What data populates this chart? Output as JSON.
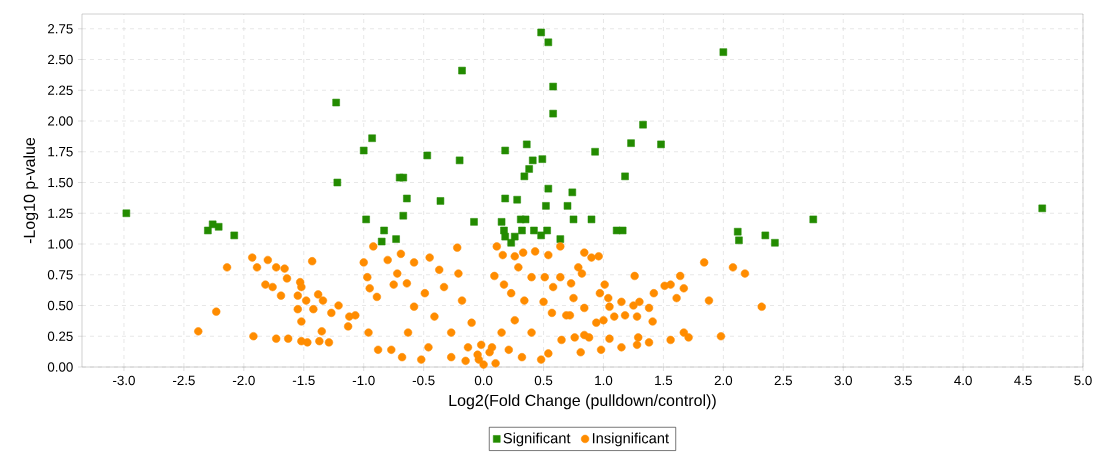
{
  "chart_data": {
    "type": "scatter",
    "xlabel": "Log2(Fold Change (pulldown/control))",
    "ylabel": "-Log10 p-value",
    "xlim": [
      -3.35,
      5.0
    ],
    "ylim": [
      0,
      2.87
    ],
    "xticks": [
      {
        "value": -3.0,
        "label": "-3.0"
      },
      {
        "value": -2.5,
        "label": "-2.5"
      },
      {
        "value": -2.0,
        "label": "-2.0"
      },
      {
        "value": -1.5,
        "label": "-1.5"
      },
      {
        "value": -1.0,
        "label": "-1.0"
      },
      {
        "value": -0.5,
        "label": "-0.5"
      },
      {
        "value": 0.0,
        "label": "0.0"
      },
      {
        "value": 0.5,
        "label": "0.5"
      },
      {
        "value": 1.0,
        "label": "1.0"
      },
      {
        "value": 1.5,
        "label": "1.5"
      },
      {
        "value": 2.0,
        "label": "2.0"
      },
      {
        "value": 2.5,
        "label": "2.5"
      },
      {
        "value": 3.0,
        "label": "3.0"
      },
      {
        "value": 3.5,
        "label": "3.5"
      },
      {
        "value": 4.0,
        "label": "4.0"
      },
      {
        "value": 4.5,
        "label": "4.5"
      },
      {
        "value": 5.0,
        "label": "5.0"
      }
    ],
    "yticks": [
      {
        "value": 0.0,
        "label": "0.00"
      },
      {
        "value": 0.25,
        "label": "0.25"
      },
      {
        "value": 0.5,
        "label": "0.50"
      },
      {
        "value": 0.75,
        "label": "0.75"
      },
      {
        "value": 1.0,
        "label": "1.00"
      },
      {
        "value": 1.25,
        "label": "1.25"
      },
      {
        "value": 1.5,
        "label": "1.50"
      },
      {
        "value": 1.75,
        "label": "1.75"
      },
      {
        "value": 2.0,
        "label": "2.00"
      },
      {
        "value": 2.25,
        "label": "2.25"
      },
      {
        "value": 2.5,
        "label": "2.50"
      },
      {
        "value": 2.75,
        "label": "2.75"
      }
    ],
    "grid": true,
    "legend": "bottom",
    "series": [
      {
        "name": "Significant",
        "color": "#238b00",
        "marker": "square",
        "x": [
          -2.98,
          -2.3,
          -2.26,
          -2.21,
          -2.08,
          -1.23,
          -1.22,
          -0.93,
          -1.0,
          -0.47,
          -0.18,
          -0.2,
          -0.7,
          -0.67,
          -0.64,
          -0.36,
          -0.98,
          -0.67,
          -0.08,
          -0.83,
          -0.85,
          -0.73,
          0.48,
          0.54,
          2.0,
          0.58,
          0.58,
          1.33,
          1.23,
          1.48,
          0.18,
          0.36,
          0.93,
          0.49,
          0.41,
          0.38,
          0.34,
          1.18,
          0.54,
          0.74,
          0.18,
          0.28,
          0.52,
          0.7,
          0.15,
          0.31,
          0.35,
          0.75,
          0.9,
          2.75,
          0.17,
          0.32,
          0.42,
          0.53,
          0.48,
          0.23,
          0.64,
          1.11,
          1.16,
          2.12,
          2.13,
          2.35,
          2.43,
          0.18,
          0.26,
          4.66
        ],
        "values": [
          1.25,
          1.11,
          1.16,
          1.14,
          1.07,
          2.15,
          1.5,
          1.86,
          1.76,
          1.72,
          2.41,
          1.68,
          1.54,
          1.54,
          1.37,
          1.35,
          1.2,
          1.23,
          1.18,
          1.11,
          1.02,
          1.04,
          2.72,
          2.64,
          2.56,
          2.28,
          2.06,
          1.97,
          1.82,
          1.81,
          1.76,
          1.81,
          1.75,
          1.69,
          1.68,
          1.61,
          1.55,
          1.55,
          1.45,
          1.42,
          1.37,
          1.36,
          1.31,
          1.31,
          1.18,
          1.2,
          1.2,
          1.2,
          1.2,
          1.2,
          1.11,
          1.11,
          1.11,
          1.11,
          1.07,
          1.01,
          1.04,
          1.11,
          1.11,
          1.1,
          1.03,
          1.07,
          1.01,
          1.06,
          1.06,
          1.29
        ]
      },
      {
        "name": "Insignificant",
        "color": "#ff8c00",
        "marker": "circle",
        "x": [
          -1.93,
          -1.8,
          -1.89,
          -2.14,
          -1.73,
          -1.66,
          -1.64,
          -1.43,
          -1.53,
          -1.82,
          -1.76,
          -1.69,
          -1.55,
          -1.52,
          -1.38,
          -1.34,
          -1.48,
          -1.55,
          -1.42,
          -1.21,
          -2.23,
          -1.52,
          -2.38,
          -1.92,
          -1.73,
          -1.63,
          -1.52,
          -1.47,
          -1.35,
          -1.37,
          -1.29,
          -1.27,
          -1.12,
          -1.07,
          -1.13,
          -1.0,
          -0.92,
          -0.8,
          -0.97,
          -0.95,
          -0.89,
          -0.69,
          -0.72,
          -0.58,
          -0.75,
          -0.64,
          -0.96,
          -0.88,
          -0.77,
          -0.68,
          -0.45,
          -0.22,
          -0.37,
          -0.21,
          -0.49,
          -0.58,
          -0.33,
          -0.18,
          -0.1,
          -0.41,
          -0.63,
          -0.27,
          -0.46,
          -0.13,
          -0.27,
          -0.04,
          -0.52,
          0.0,
          -0.05,
          0.05,
          -0.15,
          0.1,
          0.11,
          0.16,
          0.26,
          0.33,
          0.43,
          0.54,
          0.64,
          0.84,
          0.9,
          0.96,
          0.09,
          0.17,
          0.29,
          0.4,
          0.51,
          0.64,
          0.73,
          0.79,
          0.82,
          0.58,
          0.23,
          0.34,
          0.5,
          0.75,
          0.84,
          0.72,
          0.97,
          1.01,
          1.04,
          1.05,
          1.15,
          1.26,
          0.94,
          1.0,
          1.09,
          1.18,
          1.25,
          1.3,
          1.38,
          1.42,
          1.41,
          1.28,
          1.51,
          1.56,
          1.64,
          1.67,
          1.61,
          1.84,
          1.88,
          2.08,
          2.18,
          2.32,
          1.98,
          1.67,
          1.71,
          1.56,
          1.38,
          1.29,
          1.28,
          1.15,
          1.05,
          0.98,
          0.81,
          0.84,
          0.88,
          0.76,
          0.69,
          0.57,
          0.65,
          0.54,
          0.4,
          0.26,
          0.15,
          0.07,
          0.32,
          0.21,
          0.48,
          -0.02
        ],
        "values": [
          0.89,
          0.87,
          0.81,
          0.81,
          0.81,
          0.8,
          0.72,
          0.86,
          0.69,
          0.67,
          0.65,
          0.58,
          0.58,
          0.65,
          0.59,
          0.54,
          0.54,
          0.47,
          0.47,
          0.5,
          0.45,
          0.37,
          0.29,
          0.25,
          0.23,
          0.23,
          0.21,
          0.2,
          0.29,
          0.21,
          0.2,
          0.44,
          0.41,
          0.42,
          0.33,
          0.85,
          0.98,
          0.87,
          0.73,
          0.64,
          0.57,
          0.92,
          0.76,
          0.85,
          0.67,
          0.68,
          0.28,
          0.14,
          0.14,
          0.08,
          0.89,
          0.97,
          0.79,
          0.76,
          0.6,
          0.49,
          0.65,
          0.54,
          0.36,
          0.41,
          0.28,
          0.28,
          0.16,
          0.16,
          0.08,
          0.06,
          0.06,
          0.02,
          0.1,
          0.12,
          0.05,
          0.03,
          0.98,
          0.91,
          0.9,
          0.93,
          0.94,
          0.91,
          0.98,
          0.93,
          0.89,
          0.9,
          0.74,
          0.67,
          0.81,
          0.73,
          0.73,
          0.73,
          0.68,
          0.81,
          0.76,
          0.65,
          0.6,
          0.54,
          0.53,
          0.56,
          0.48,
          0.42,
          0.6,
          0.67,
          0.56,
          0.49,
          0.53,
          0.74,
          0.36,
          0.38,
          0.41,
          0.42,
          0.5,
          0.53,
          0.48,
          0.6,
          0.37,
          0.41,
          0.66,
          0.67,
          0.74,
          0.64,
          0.56,
          0.85,
          0.54,
          0.81,
          0.76,
          0.49,
          0.25,
          0.28,
          0.24,
          0.22,
          0.2,
          0.24,
          0.18,
          0.16,
          0.23,
          0.14,
          0.12,
          0.26,
          0.24,
          0.24,
          0.42,
          0.44,
          0.22,
          0.11,
          0.28,
          0.38,
          0.28,
          0.16,
          0.08,
          0.14,
          0.06,
          0.18
        ]
      }
    ]
  }
}
